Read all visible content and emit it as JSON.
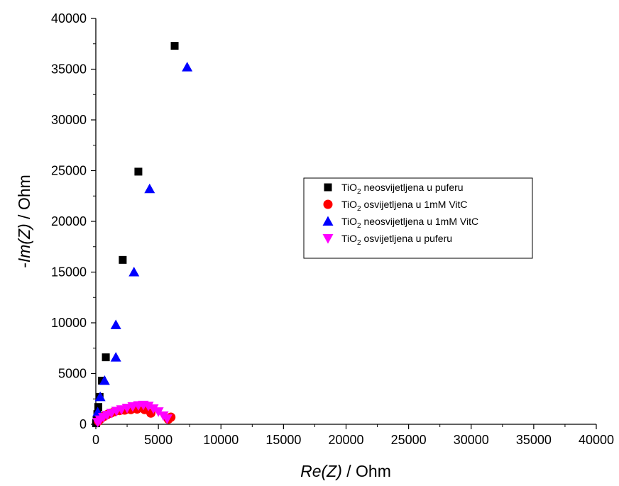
{
  "chart_data": {
    "type": "scatter",
    "xlabel": {
      "italic": "Re(Z)",
      "rest": " / Ohm"
    },
    "ylabel": {
      "italic": "Im(Z)",
      "prefix": "-",
      "rest": " / Ohm"
    },
    "xlim": [
      0,
      40000
    ],
    "ylim": [
      0,
      40000
    ],
    "xticks": [
      "0",
      "5000",
      "10000",
      "15000",
      "20000",
      "25000",
      "30000",
      "35000",
      "40000"
    ],
    "yticks": [
      "0",
      "5000",
      "10000",
      "15000",
      "20000",
      "25000",
      "30000",
      "35000",
      "40000"
    ],
    "grid": false,
    "legend_position": "center-right",
    "series": [
      {
        "name": {
          "base": "TiO",
          "sub": "2",
          "rest": " neosvijetljena u puferu"
        },
        "marker": "square",
        "color": "#000000",
        "points": [
          [
            6300,
            37300
          ],
          [
            3400,
            24900
          ],
          [
            2150,
            16200
          ],
          [
            800,
            6600
          ],
          [
            480,
            4300
          ],
          [
            300,
            2700
          ],
          [
            200,
            1700
          ],
          [
            120,
            1000
          ],
          [
            60,
            400
          ],
          [
            20,
            100
          ]
        ]
      },
      {
        "name": {
          "base": "TiO",
          "sub": "2",
          "rest": " osvijetljena u 1mM VitC"
        },
        "marker": "circle",
        "color": "#ff0000",
        "points": [
          [
            200,
            300
          ],
          [
            400,
            550
          ],
          [
            650,
            780
          ],
          [
            900,
            950
          ],
          [
            1200,
            1100
          ],
          [
            1500,
            1250
          ],
          [
            1900,
            1350
          ],
          [
            2300,
            1400
          ],
          [
            2800,
            1450
          ],
          [
            3300,
            1500
          ],
          [
            3900,
            1450
          ],
          [
            4400,
            1100
          ],
          [
            5800,
            500
          ],
          [
            6000,
            700
          ]
        ]
      },
      {
        "name": {
          "base": "TiO",
          "sub": "2",
          "rest": " neosvijetljena u 1mM VitC"
        },
        "marker": "triangle-up",
        "color": "#0000ff",
        "points": [
          [
            7300,
            35200
          ],
          [
            4300,
            23200
          ],
          [
            3050,
            15000
          ],
          [
            1600,
            9800
          ],
          [
            1600,
            6600
          ],
          [
            700,
            4300
          ],
          [
            350,
            2700
          ],
          [
            150,
            1200
          ]
        ]
      },
      {
        "name": {
          "base": "TiO",
          "sub": "2",
          "rest": " osvijetljena u puferu"
        },
        "marker": "triangle-down",
        "color": "#ff00ff",
        "points": [
          [
            150,
            200
          ],
          [
            350,
            450
          ],
          [
            600,
            700
          ],
          [
            900,
            900
          ],
          [
            1250,
            1100
          ],
          [
            1650,
            1300
          ],
          [
            2050,
            1450
          ],
          [
            2500,
            1600
          ],
          [
            2950,
            1750
          ],
          [
            3400,
            1850
          ],
          [
            3800,
            1900
          ],
          [
            4200,
            1800
          ],
          [
            4600,
            1550
          ],
          [
            5000,
            1250
          ],
          [
            5400,
            850
          ],
          [
            5700,
            550
          ]
        ]
      }
    ]
  }
}
